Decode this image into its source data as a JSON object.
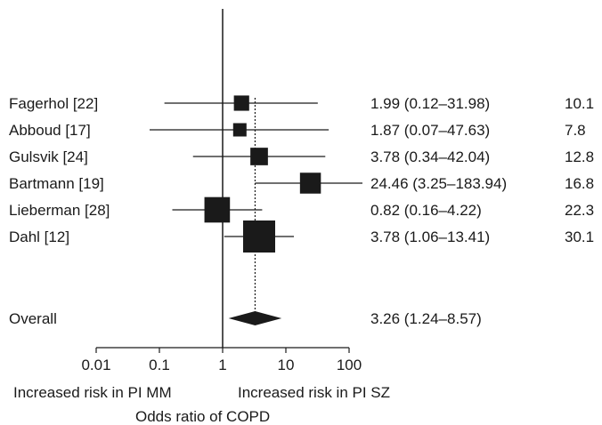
{
  "chart_data": {
    "type": "forest",
    "xscale": "log",
    "xlim": [
      0.01,
      100
    ],
    "xticks": [
      "0.01",
      "0.1",
      "1",
      "10",
      "100"
    ],
    "xlabel": "Odds ratio of COPD",
    "left_direction_label": "Increased risk in PI MM",
    "right_direction_label": "Increased risk in PI SZ",
    "reference_line": 1,
    "pooled_line": 3.26,
    "studies": [
      {
        "name": "Fagerhol [22]",
        "or": 1.99,
        "lo": 0.12,
        "hi": 31.98,
        "ci_text": "1.99 (0.12–31.98)",
        "weight": "10.1"
      },
      {
        "name": "Abboud [17]",
        "or": 1.87,
        "lo": 0.07,
        "hi": 47.63,
        "ci_text": "1.87 (0.07–47.63)",
        "weight": "7.8"
      },
      {
        "name": "Gulsvik [24]",
        "or": 3.78,
        "lo": 0.34,
        "hi": 42.04,
        "ci_text": "3.78 (0.34–42.04)",
        "weight": "12.8"
      },
      {
        "name": "Bartmann [19]",
        "or": 24.46,
        "lo": 3.25,
        "hi": 183.94,
        "ci_text": "24.46 (3.25–183.94)",
        "weight": "16.8"
      },
      {
        "name": "Lieberman [28]",
        "or": 0.82,
        "lo": 0.16,
        "hi": 4.22,
        "ci_text": "0.82 (0.16–4.22)",
        "weight": "22.3"
      },
      {
        "name": "Dahl [12]",
        "or": 3.78,
        "lo": 1.06,
        "hi": 13.41,
        "ci_text": "3.78 (1.06–13.41)",
        "weight": "30.1"
      }
    ],
    "overall": {
      "name": "Overall",
      "or": 3.26,
      "lo": 1.24,
      "hi": 8.57,
      "ci_text": "3.26 (1.24–8.57)"
    }
  }
}
